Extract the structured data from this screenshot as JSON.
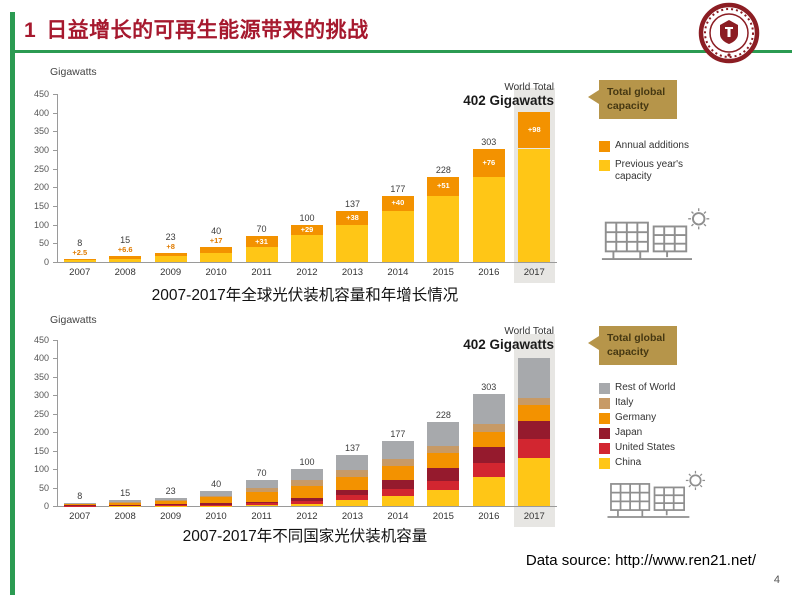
{
  "header": {
    "number": "1",
    "title": "日益增长的可再生能源带来的挑战"
  },
  "footer": {
    "data_source": "Data source: http://www.ren21.net/",
    "page_number": "4"
  },
  "theme": {
    "accent_green": "#2B9B52",
    "title_red": "#A6192E",
    "callout_bg": "#B6954A",
    "callout_text": "#463812",
    "logo_red": "#8C1D23"
  },
  "chart_data": [
    {
      "type": "bar",
      "subtype": "stacked",
      "unit_label": "Gigawatts",
      "world_total_label": "World Total",
      "world_total_value": "402 Gigawatts",
      "caption": "2007-2017年全球光伏装机容量和年增长情况",
      "categories": [
        "2007",
        "2008",
        "2009",
        "2010",
        "2011",
        "2012",
        "2013",
        "2014",
        "2015",
        "2016",
        "2017"
      ],
      "ylim": [
        0,
        450
      ],
      "y_ticks": [
        0,
        50,
        100,
        150,
        200,
        250,
        300,
        350,
        400,
        450
      ],
      "highlight_category": "2017",
      "totals": [
        8,
        15,
        23,
        40,
        70,
        100,
        137,
        177,
        228,
        303,
        402
      ],
      "total_labels": [
        "8",
        "15",
        "23",
        "40",
        "70",
        "100",
        "137",
        "177",
        "228",
        "303",
        ""
      ],
      "series": [
        {
          "name": "Previous year's capacity",
          "color": "#FFC616",
          "values": [
            5.5,
            8.4,
            15,
            23,
            39,
            71,
            99,
            137,
            177,
            227,
            304
          ]
        },
        {
          "name": "Annual additions",
          "color": "#F39200",
          "values": [
            2.5,
            6.6,
            8,
            17,
            31,
            29,
            38,
            40,
            51,
            76,
            98
          ],
          "labels": [
            "+2.5",
            "+6.6",
            "+8",
            "+17",
            "+31",
            "+29",
            "+38",
            "+40",
            "+51",
            "+76",
            "+98"
          ]
        }
      ],
      "legend_callout": "Total global capacity",
      "legend": [
        {
          "label": "Annual additions",
          "color": "#F39200"
        },
        {
          "label": "Previous year's capacity",
          "color": "#FFC616"
        }
      ]
    },
    {
      "type": "bar",
      "subtype": "stacked",
      "unit_label": "Gigawatts",
      "world_total_label": "World Total",
      "world_total_value": "402 Gigawatts",
      "caption": "2007-2017年不同国家光伏装机容量",
      "categories": [
        "2007",
        "2008",
        "2009",
        "2010",
        "2011",
        "2012",
        "2013",
        "2014",
        "2015",
        "2016",
        "2017"
      ],
      "ylim": [
        0,
        450
      ],
      "y_ticks": [
        0,
        50,
        100,
        150,
        200,
        250,
        300,
        350,
        400,
        450
      ],
      "highlight_category": "2017",
      "totals": [
        8,
        15,
        23,
        40,
        70,
        100,
        137,
        177,
        228,
        303,
        402
      ],
      "total_labels": [
        "8",
        "15",
        "23",
        "40",
        "70",
        "100",
        "137",
        "177",
        "228",
        "303",
        ""
      ],
      "series": [
        {
          "name": "China",
          "color": "#FFC616",
          "values": [
            0.1,
            0.2,
            0.3,
            0.8,
            3.1,
            6.7,
            17.5,
            28.2,
            43.5,
            77.4,
            131
          ]
        },
        {
          "name": "United States",
          "color": "#D22630",
          "values": [
            0.8,
            1.2,
            1.6,
            2.5,
            4,
            7.2,
            12.1,
            18.3,
            25.6,
            40.3,
            51
          ]
        },
        {
          "name": "Japan",
          "color": "#951A2D",
          "values": [
            1.9,
            2.1,
            2.6,
            3.6,
            4.9,
            6.6,
            13.6,
            23.3,
            34.2,
            42.8,
            49
          ]
        },
        {
          "name": "Germany",
          "color": "#F39200",
          "values": [
            3.9,
            6,
            9.8,
            17.2,
            24.8,
            32.4,
            35.7,
            38.2,
            39.7,
            41.2,
            42
          ]
        },
        {
          "name": "Italy",
          "color": "#C79A66",
          "values": [
            0.1,
            0.4,
            1.1,
            3.5,
            12.8,
            16.4,
            18.1,
            18.6,
            18.9,
            19.3,
            19.7
          ]
        },
        {
          "name": "Rest of World",
          "color": "#A7A9AC",
          "values": [
            1.2,
            5.1,
            7.6,
            12.4,
            20.4,
            30.7,
            40,
            50.4,
            66.1,
            82,
            109.3
          ]
        }
      ],
      "legend_callout": "Total global capacity",
      "legend": [
        {
          "label": "Rest of World",
          "color": "#A7A9AC"
        },
        {
          "label": "Italy",
          "color": "#C79A66"
        },
        {
          "label": "Germany",
          "color": "#F39200"
        },
        {
          "label": "Japan",
          "color": "#951A2D"
        },
        {
          "label": "United States",
          "color": "#D22630"
        },
        {
          "label": "China",
          "color": "#FFC616"
        }
      ]
    }
  ]
}
